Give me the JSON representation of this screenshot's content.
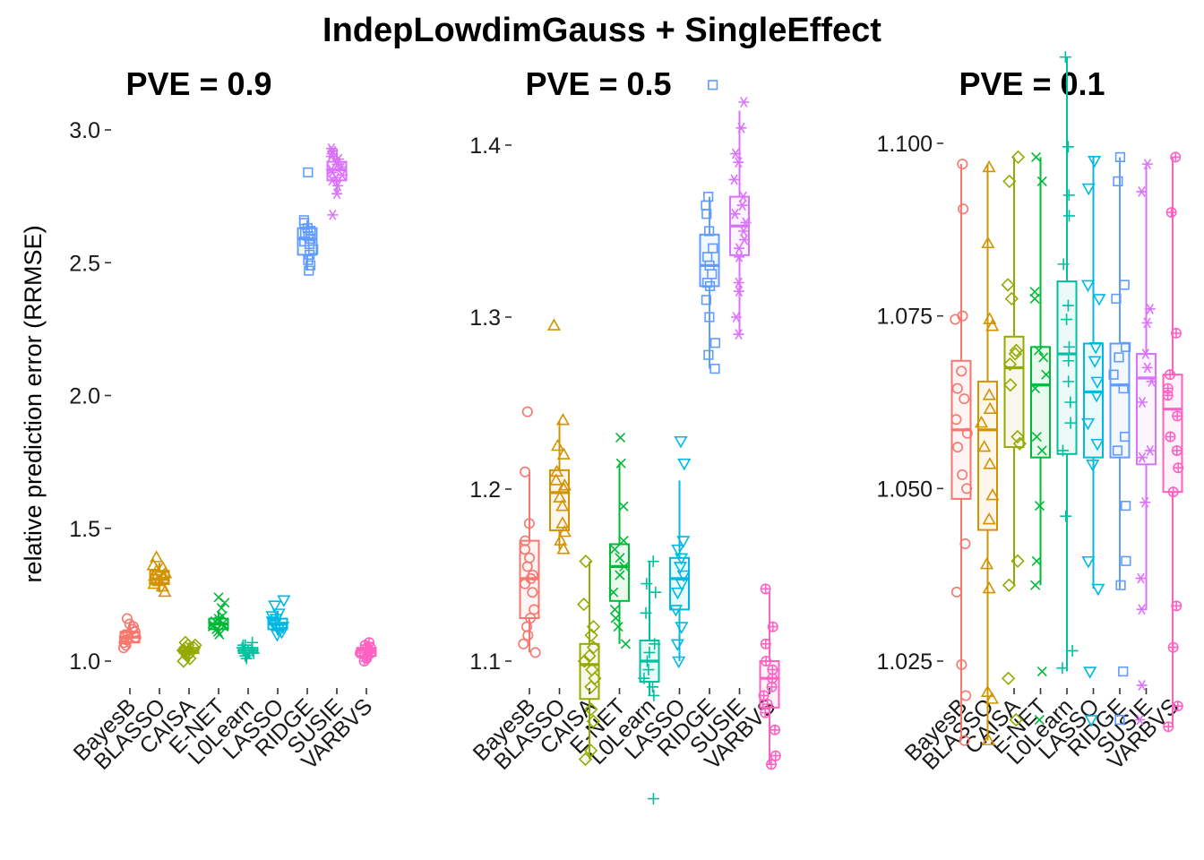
{
  "title": "IndepLowdimGauss + SingleEffect",
  "ylabel": "relative prediction error (RRMSE)",
  "method_colors": {
    "BayesB": "#F8766D",
    "BLASSO": "#D39200",
    "CAISA": "#93AA00",
    "E-NET": "#00BA38",
    "L0Learn": "#00C19F",
    "LASSO": "#00B9E3",
    "RIDGE": "#619CFF",
    "SUSIE": "#DB72FB",
    "VARBVS": "#FF61C3"
  },
  "method_shapes": {
    "BayesB": "circle",
    "BLASSO": "triangle-up",
    "CAISA": "diamond",
    "E-NET": "cross-x",
    "L0Learn": "plus",
    "LASSO": "triangle-down",
    "RIDGE": "square",
    "SUSIE": "asterisk",
    "VARBVS": "circle-plus"
  },
  "chart_data": [
    {
      "type": "box",
      "title": "PVE = 0.9",
      "categories": [
        "BayesB",
        "BLASSO",
        "CAISA",
        "E-NET",
        "L0Learn",
        "LASSO",
        "RIDGE",
        "SUSIE",
        "VARBVS"
      ],
      "ylim": [
        0.93,
        3.05
      ],
      "yticks": [
        1.0,
        1.5,
        2.0,
        2.5,
        3.0
      ],
      "ytick_labels": [
        "1.0",
        "1.5",
        "2.0",
        "2.5",
        "3.0"
      ],
      "boxes": [
        {
          "q1": 1.07,
          "median": 1.09,
          "q3": 1.11,
          "min": 1.05,
          "max": 1.14
        },
        {
          "q1": 1.29,
          "median": 1.31,
          "q3": 1.34,
          "min": 1.26,
          "max": 1.37
        },
        {
          "q1": 1.03,
          "median": 1.04,
          "q3": 1.05,
          "min": 1.0,
          "max": 1.07
        },
        {
          "q1": 1.12,
          "median": 1.14,
          "q3": 1.16,
          "min": 1.1,
          "max": 1.19
        },
        {
          "q1": 1.03,
          "median": 1.04,
          "q3": 1.05,
          "min": 1.01,
          "max": 1.06
        },
        {
          "q1": 1.12,
          "median": 1.14,
          "q3": 1.16,
          "min": 1.1,
          "max": 1.19
        },
        {
          "q1": 2.53,
          "median": 2.59,
          "q3": 2.63,
          "min": 2.47,
          "max": 2.66
        },
        {
          "q1": 2.81,
          "median": 2.85,
          "q3": 2.88,
          "min": 2.76,
          "max": 2.93
        },
        {
          "q1": 1.02,
          "median": 1.04,
          "q3": 1.05,
          "min": 1.0,
          "max": 1.07
        }
      ],
      "points": [
        [
          1.05,
          1.06,
          1.07,
          1.08,
          1.08,
          1.09,
          1.09,
          1.1,
          1.1,
          1.11,
          1.12,
          1.13,
          1.14,
          1.16
        ],
        [
          1.26,
          1.28,
          1.29,
          1.3,
          1.31,
          1.31,
          1.32,
          1.32,
          1.33,
          1.34,
          1.35,
          1.36,
          1.39
        ],
        [
          1.0,
          1.01,
          1.02,
          1.03,
          1.03,
          1.04,
          1.04,
          1.05,
          1.05,
          1.06,
          1.06,
          1.07
        ],
        [
          1.1,
          1.11,
          1.12,
          1.13,
          1.13,
          1.14,
          1.14,
          1.15,
          1.15,
          1.16,
          1.17,
          1.2,
          1.22,
          1.24
        ],
        [
          1.01,
          1.02,
          1.03,
          1.03,
          1.04,
          1.04,
          1.04,
          1.05,
          1.05,
          1.06,
          1.06,
          1.07
        ],
        [
          1.1,
          1.11,
          1.12,
          1.13,
          1.14,
          1.14,
          1.15,
          1.16,
          1.17,
          1.18,
          1.21,
          1.23
        ],
        [
          2.47,
          2.49,
          2.51,
          2.53,
          2.55,
          2.57,
          2.58,
          2.59,
          2.6,
          2.61,
          2.62,
          2.63,
          2.65,
          2.66,
          2.84
        ],
        [
          2.68,
          2.76,
          2.79,
          2.81,
          2.82,
          2.83,
          2.84,
          2.85,
          2.86,
          2.87,
          2.88,
          2.89,
          2.9,
          2.91,
          2.92,
          2.93
        ],
        [
          1.0,
          1.01,
          1.02,
          1.03,
          1.03,
          1.04,
          1.04,
          1.05,
          1.05,
          1.06,
          1.07
        ]
      ]
    },
    {
      "type": "box",
      "title": "PVE = 0.5",
      "categories": [
        "BayesB",
        "BLASSO",
        "CAISA",
        "E-NET",
        "L0Learn",
        "LASSO",
        "RIDGE",
        "SUSIE",
        "VARBVS"
      ],
      "ylim": [
        1.03,
        1.44
      ],
      "yticks": [
        1.1,
        1.2,
        1.3,
        1.4
      ],
      "ytick_labels": [
        "1.1",
        "1.2",
        "1.3",
        "1.4"
      ],
      "boxes": [
        {
          "q1": 1.125,
          "median": 1.148,
          "q3": 1.17,
          "min": 1.105,
          "max": 1.21
        },
        {
          "q1": 1.176,
          "median": 1.198,
          "q3": 1.211,
          "min": 1.165,
          "max": 1.24
        },
        {
          "q1": 1.078,
          "median": 1.098,
          "q3": 1.11,
          "min": 1.043,
          "max": 1.158
        },
        {
          "q1": 1.135,
          "median": 1.155,
          "q3": 1.168,
          "min": 1.11,
          "max": 1.215
        },
        {
          "q1": 1.088,
          "median": 1.1,
          "q3": 1.112,
          "min": 1.08,
          "max": 1.158
        },
        {
          "q1": 1.13,
          "median": 1.148,
          "q3": 1.16,
          "min": 1.1,
          "max": 1.205
        },
        {
          "q1": 1.318,
          "median": 1.33,
          "q3": 1.348,
          "min": 1.27,
          "max": 1.37
        },
        {
          "q1": 1.336,
          "median": 1.353,
          "q3": 1.37,
          "min": 1.29,
          "max": 1.42
        },
        {
          "q1": 1.073,
          "median": 1.09,
          "q3": 1.1,
          "min": 1.04,
          "max": 1.14
        }
      ],
      "points": [
        [
          1.105,
          1.11,
          1.115,
          1.12,
          1.125,
          1.13,
          1.14,
          1.145,
          1.148,
          1.15,
          1.155,
          1.16,
          1.165,
          1.17,
          1.18,
          1.21,
          1.245
        ],
        [
          1.165,
          1.17,
          1.175,
          1.18,
          1.19,
          1.195,
          1.2,
          1.202,
          1.205,
          1.21,
          1.22,
          1.225,
          1.24,
          1.295
        ],
        [
          1.043,
          1.048,
          1.065,
          1.072,
          1.085,
          1.09,
          1.095,
          1.1,
          1.103,
          1.108,
          1.115,
          1.12,
          1.133,
          1.158
        ],
        [
          1.11,
          1.12,
          1.125,
          1.13,
          1.14,
          1.15,
          1.155,
          1.16,
          1.165,
          1.17,
          1.19,
          1.215,
          1.23
        ],
        [
          1.02,
          1.08,
          1.085,
          1.09,
          1.095,
          1.1,
          1.105,
          1.11,
          1.128,
          1.14,
          1.145,
          1.158
        ],
        [
          1.1,
          1.11,
          1.12,
          1.13,
          1.14,
          1.145,
          1.15,
          1.155,
          1.16,
          1.165,
          1.17,
          1.215,
          1.228
        ],
        [
          1.27,
          1.278,
          1.285,
          1.3,
          1.31,
          1.318,
          1.32,
          1.325,
          1.33,
          1.335,
          1.34,
          1.35,
          1.36,
          1.365,
          1.37,
          1.435
        ],
        [
          1.29,
          1.3,
          1.315,
          1.32,
          1.335,
          1.34,
          1.345,
          1.35,
          1.355,
          1.36,
          1.365,
          1.37,
          1.38,
          1.39,
          1.395,
          1.41,
          1.425
        ],
        [
          1.04,
          1.045,
          1.06,
          1.07,
          1.075,
          1.08,
          1.085,
          1.09,
          1.095,
          1.1,
          1.11,
          1.12,
          1.142
        ]
      ]
    },
    {
      "type": "box",
      "title": "PVE = 0.1",
      "categories": [
        "BayesB",
        "BLASSO",
        "CAISA",
        "E-NET",
        "L0Learn",
        "LASSO",
        "RIDGE",
        "SUSIE",
        "VARBVS"
      ],
      "ylim": [
        1.011,
        1.1135
      ],
      "yticks": [
        1.025,
        1.05,
        1.075,
        1.1
      ],
      "ytick_labels": [
        "1.025",
        "1.050",
        "1.075",
        "1.100"
      ],
      "boxes": [
        {
          "q1": 1.0485,
          "median": 1.0585,
          "q3": 1.0685,
          "min": 1.0135,
          "max": 1.097
        },
        {
          "q1": 1.044,
          "median": 1.0585,
          "q3": 1.0655,
          "min": 1.0135,
          "max": 1.097
        },
        {
          "q1": 1.056,
          "median": 1.0675,
          "q3": 1.072,
          "min": 1.036,
          "max": 1.098
        },
        {
          "q1": 1.0545,
          "median": 1.065,
          "q3": 1.0705,
          "min": 1.036,
          "max": 1.098
        },
        {
          "q1": 1.055,
          "median": 1.0695,
          "q3": 1.08,
          "min": 1.0235,
          "max": 1.1125
        },
        {
          "q1": 1.0545,
          "median": 1.064,
          "q3": 1.071,
          "min": 1.0355,
          "max": 1.098
        },
        {
          "q1": 1.0545,
          "median": 1.065,
          "q3": 1.071,
          "min": 1.0355,
          "max": 1.098
        },
        {
          "q1": 1.0535,
          "median": 1.066,
          "q3": 1.0695,
          "min": 1.0325,
          "max": 1.097
        },
        {
          "q1": 1.0495,
          "median": 1.0615,
          "q3": 1.0665,
          "min": 1.0155,
          "max": 1.098
        }
      ],
      "points": [
        [
          1.0135,
          1.02,
          1.0245,
          1.035,
          1.042,
          1.05,
          1.052,
          1.056,
          1.058,
          1.06,
          1.063,
          1.0645,
          1.067,
          1.0745,
          1.075,
          1.0905,
          1.097
        ],
        [
          1.0135,
          1.0195,
          1.0205,
          1.0355,
          1.039,
          1.0455,
          1.049,
          1.0535,
          1.056,
          1.0595,
          1.0615,
          1.0635,
          1.0735,
          1.0745,
          1.0855,
          1.0965
        ],
        [
          1.0165,
          1.0225,
          1.036,
          1.0395,
          1.0565,
          1.0575,
          1.065,
          1.068,
          1.0695,
          1.07,
          1.0775,
          1.0795,
          1.0945,
          1.098
        ],
        [
          1.0165,
          1.0235,
          1.036,
          1.0395,
          1.0475,
          1.0555,
          1.0575,
          1.0645,
          1.0665,
          1.069,
          1.07,
          1.0775,
          1.0785,
          1.0945,
          1.098
        ],
        [
          1.024,
          1.0265,
          1.046,
          1.0555,
          1.0595,
          1.0625,
          1.0655,
          1.0685,
          1.0705,
          1.0745,
          1.0765,
          1.0825,
          1.0895,
          1.0925,
          1.0995,
          1.1125
        ],
        [
          1.0165,
          1.0235,
          1.0355,
          1.0395,
          1.0535,
          1.0565,
          1.0595,
          1.0635,
          1.0655,
          1.0685,
          1.0705,
          1.0775,
          1.0795,
          1.0935,
          1.0975
        ],
        [
          1.0165,
          1.0235,
          1.036,
          1.0395,
          1.0475,
          1.0555,
          1.0575,
          1.0645,
          1.0665,
          1.069,
          1.0705,
          1.0775,
          1.0795,
          1.0945,
          1.098
        ],
        [
          1.0165,
          1.0215,
          1.0325,
          1.037,
          1.048,
          1.0545,
          1.0555,
          1.0625,
          1.0655,
          1.0675,
          1.0695,
          1.074,
          1.076,
          1.093,
          1.097
        ],
        [
          1.0155,
          1.0185,
          1.027,
          1.033,
          1.0495,
          1.053,
          1.0555,
          1.0575,
          1.0605,
          1.0635,
          1.0645,
          1.0665,
          1.0725,
          1.09,
          1.098
        ]
      ]
    }
  ]
}
